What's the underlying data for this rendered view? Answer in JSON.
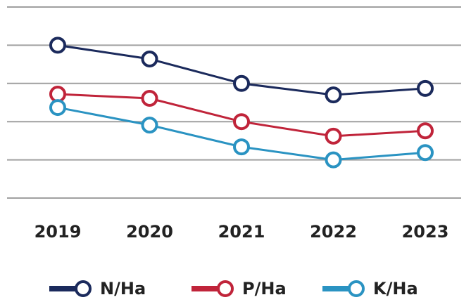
{
  "chart_data": {
    "type": "line",
    "categories": [
      "2019",
      "2020",
      "2021",
      "2022",
      "2023"
    ],
    "series": [
      {
        "name": "N/Ha",
        "color": "#1b2a5c",
        "values": [
          4.0,
          3.64,
          3.0,
          2.7,
          2.87
        ]
      },
      {
        "name": "P/Ha",
        "color": "#c0243a",
        "values": [
          2.72,
          2.61,
          2.0,
          1.62,
          1.76
        ]
      },
      {
        "name": "K/Ha",
        "color": "#2a93c2",
        "values": [
          2.37,
          1.91,
          1.34,
          1.0,
          1.19
        ]
      }
    ],
    "ylim": [
      0,
      5
    ],
    "yticks": [
      0,
      1,
      2,
      3,
      4,
      5
    ],
    "grid": true
  }
}
